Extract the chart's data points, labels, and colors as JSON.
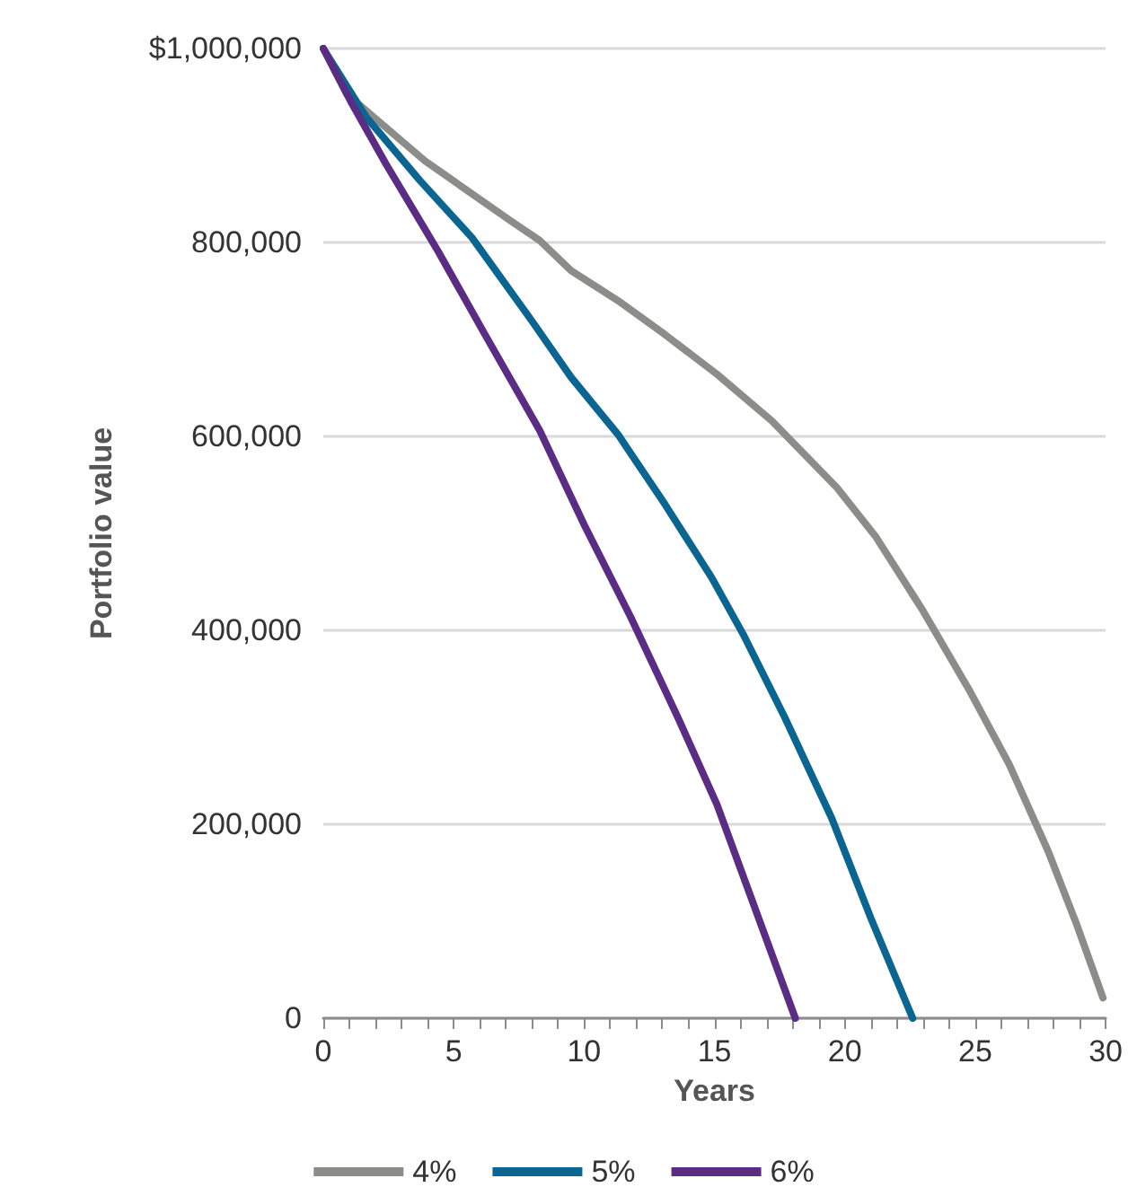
{
  "chart_data": {
    "type": "line",
    "xlabel": "Years",
    "ylabel": "Portfolio value",
    "xlim": [
      0,
      30
    ],
    "xticks": [
      0,
      {
        "value": 1,
        "label": null
      },
      {
        "value": 2,
        "label": null
      },
      {
        "value": 3,
        "label": null
      },
      {
        "value": 4,
        "label": null
      },
      5,
      {
        "value": 6,
        "label": null
      },
      {
        "value": 7,
        "label": null
      },
      {
        "value": 8,
        "label": null
      },
      {
        "value": 9,
        "label": null
      },
      10,
      {
        "value": 11,
        "label": null
      },
      {
        "value": 12,
        "label": null
      },
      {
        "value": 13,
        "label": null
      },
      {
        "value": 14,
        "label": null
      },
      15,
      {
        "value": 16,
        "label": null
      },
      {
        "value": 17,
        "label": null
      },
      {
        "value": 18,
        "label": null
      },
      {
        "value": 19,
        "label": null
      },
      20,
      {
        "value": 21,
        "label": null
      },
      {
        "value": 22,
        "label": null
      },
      {
        "value": 23,
        "label": null
      },
      {
        "value": 24,
        "label": null
      },
      25,
      {
        "value": 26,
        "label": null
      },
      {
        "value": 27,
        "label": null
      },
      {
        "value": 28,
        "label": null
      },
      {
        "value": 29,
        "label": null
      },
      30
    ],
    "ylim": [
      0,
      1000000
    ],
    "yticks": [
      0,
      {
        "value": 200000,
        "label": "200,000"
      },
      {
        "value": 400000,
        "label": "400,000"
      },
      {
        "value": 600000,
        "label": "600,000"
      },
      {
        "value": 800000,
        "label": "800,000"
      },
      {
        "value": 1000000,
        "label": "$1,000,000"
      }
    ],
    "grid": "y",
    "legend": "bottom",
    "marker": "none",
    "line_style": "solid",
    "series": [
      {
        "name": "4%",
        "color": "#8c8c88",
        "x": [
          0,
          0.9,
          3.9,
          7.2,
          8.3,
          9.5,
          11.3,
          13.1,
          15.1,
          17.2,
          19.7,
          21.2,
          23.0,
          24.8,
          26.3,
          27.8,
          28.9,
          29.9
        ],
        "values": [
          1000000,
          953000,
          884000,
          822000,
          802000,
          771000,
          740000,
          705000,
          664000,
          616000,
          547000,
          496000,
          420000,
          337000,
          262000,
          172000,
          96000,
          21000
        ]
      },
      {
        "name": "5%",
        "color": "#0a6590",
        "x": [
          0,
          1.65,
          3.7,
          5.7,
          8.0,
          9.5,
          11.3,
          13.1,
          14.9,
          16.1,
          17.7,
          19.5,
          21.0,
          22.6
        ],
        "values": [
          1000000,
          929000,
          864000,
          805000,
          719000,
          661000,
          602000,
          530000,
          454000,
          396000,
          310000,
          206000,
          103000,
          0
        ]
      },
      {
        "name": "6%",
        "color": "#5b2c83",
        "x": [
          0,
          1.1,
          2.4,
          4.4,
          6.2,
          8.3,
          10.0,
          11.8,
          13.6,
          15.1,
          16.6,
          18.1
        ],
        "values": [
          1000000,
          943000,
          881000,
          791000,
          705000,
          606000,
          509000,
          413000,
          310000,
          220000,
          110000,
          0
        ]
      }
    ]
  }
}
